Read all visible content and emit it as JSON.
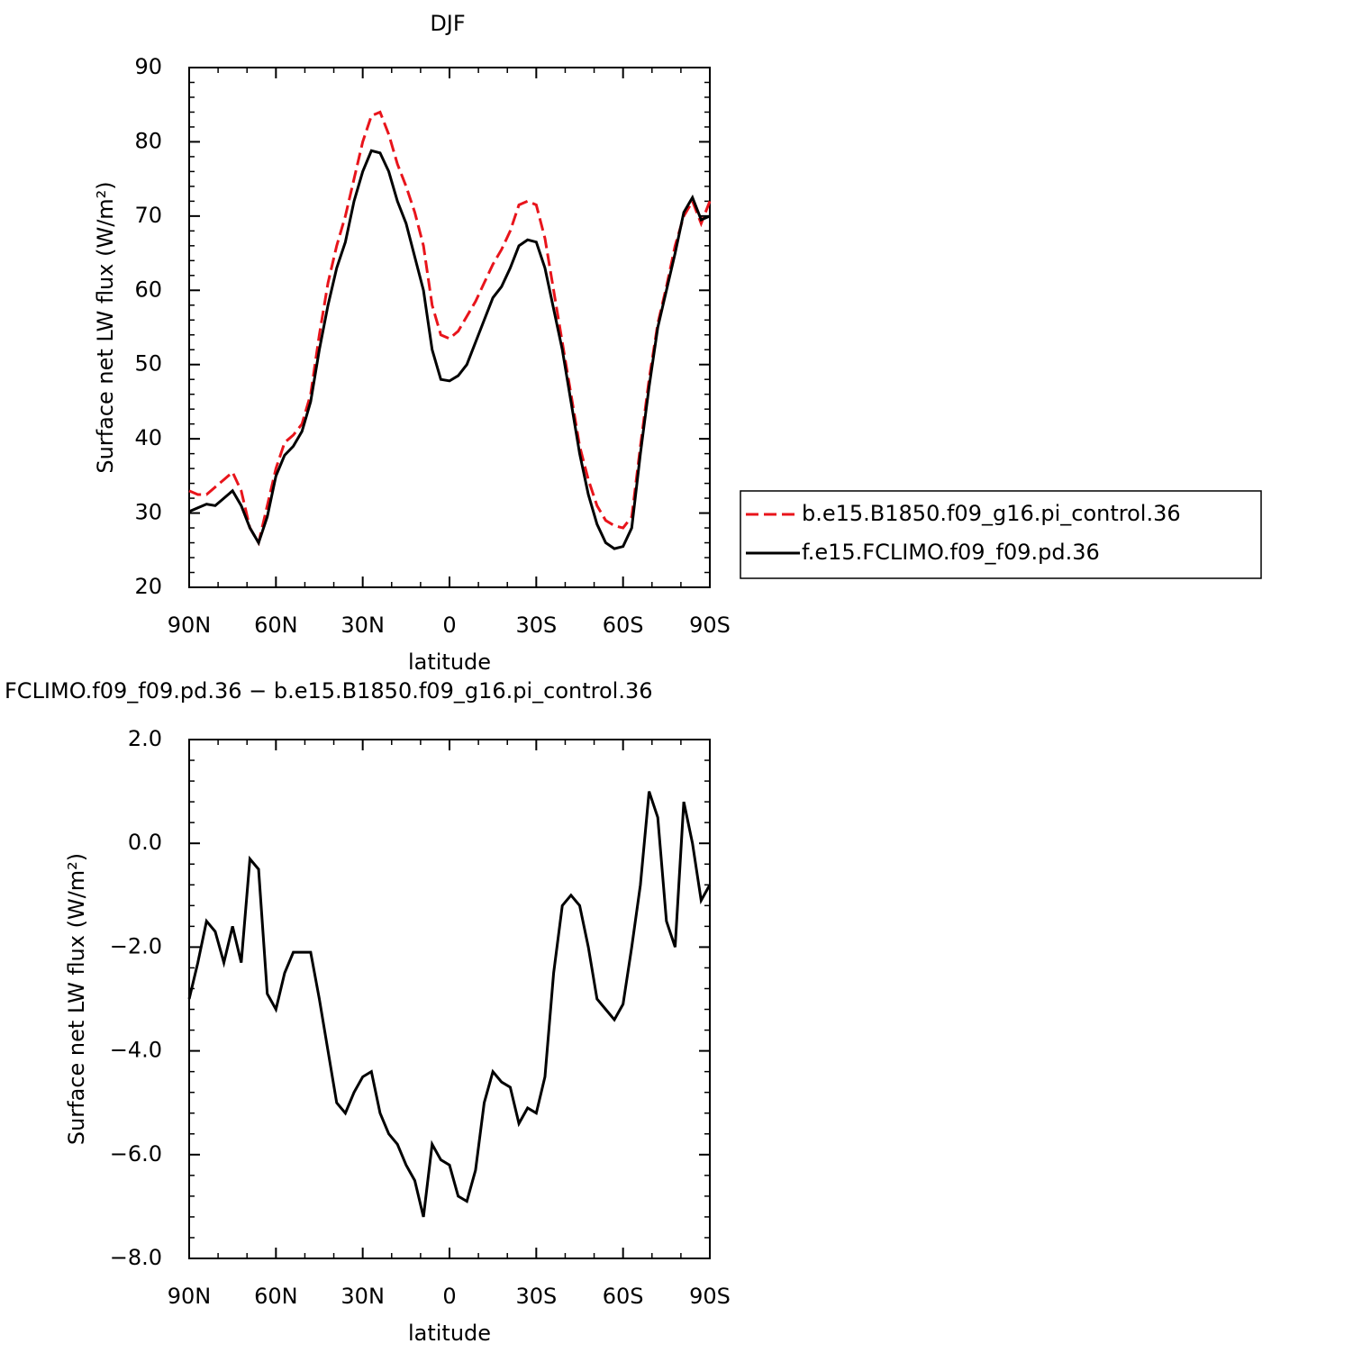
{
  "chart_data": [
    {
      "type": "line",
      "title": "DJF",
      "xlabel": "latitude",
      "ylabel": "Surface net LW flux (W/m²)",
      "x": [
        90,
        87,
        84,
        81,
        78,
        75,
        72,
        69,
        66,
        63,
        60,
        57,
        54,
        51,
        48,
        45,
        42,
        39,
        36,
        33,
        30,
        27,
        24,
        21,
        18,
        15,
        12,
        9,
        6,
        3,
        0,
        -3,
        -6,
        -9,
        -12,
        -15,
        -18,
        -21,
        -24,
        -27,
        -30,
        -33,
        -36,
        -39,
        -42,
        -45,
        -48,
        -51,
        -54,
        -57,
        -60,
        -63,
        -66,
        -69,
        -72,
        -75,
        -78,
        -81,
        -84,
        -87,
        -90
      ],
      "series": [
        {
          "name": "b.e15.B1850.f09_g16.pi_control.36",
          "color": "#e8141b",
          "dash": "dashed",
          "values": [
            33,
            32.5,
            32.5,
            33.5,
            34.5,
            35.5,
            33,
            28,
            26,
            31,
            36,
            39.5,
            40.5,
            42,
            46,
            54,
            61,
            66,
            70,
            75,
            80,
            83.5,
            84,
            81,
            77,
            74,
            70.5,
            66,
            58,
            54,
            53.5,
            54.5,
            56.5,
            58.5,
            61,
            63.5,
            65.5,
            68,
            71.5,
            72,
            71.5,
            67,
            60,
            53,
            46,
            39,
            34.5,
            31,
            29,
            28.3,
            28,
            29.5,
            39,
            48,
            55.5,
            60.5,
            66,
            70,
            72,
            69,
            72
          ]
        },
        {
          "name": "f.e15.FCLIMO.f09_f09.pd.36",
          "color": "#000000",
          "dash": "solid",
          "values": [
            30.2,
            30.7,
            31.2,
            31,
            32,
            33,
            31,
            28,
            26,
            29.5,
            35,
            37.8,
            39,
            41,
            45,
            52,
            58,
            63,
            66.5,
            72,
            76,
            78.8,
            78.5,
            76,
            72,
            69,
            64.5,
            60,
            52,
            48,
            47.8,
            48.5,
            50,
            53,
            56,
            59,
            60.5,
            63,
            66,
            66.8,
            66.5,
            63,
            57.5,
            52,
            45,
            38,
            32.5,
            28.5,
            26,
            25.2,
            25.5,
            28,
            38,
            47,
            55,
            60,
            65,
            70.5,
            72.5,
            69.5,
            70
          ]
        }
      ],
      "xlim": [
        90,
        -90
      ],
      "xticks": [
        {
          "value": 90,
          "label": "90N"
        },
        {
          "value": 60,
          "label": "60N"
        },
        {
          "value": 30,
          "label": "30N"
        },
        0,
        {
          "value": -30,
          "label": "30S"
        },
        {
          "value": -60,
          "label": "60S"
        },
        {
          "value": -90,
          "label": "90S"
        }
      ],
      "ylim": [
        20,
        90
      ],
      "yticks": [
        20,
        30,
        40,
        50,
        60,
        70,
        80,
        90
      ],
      "legend": "outside-right"
    },
    {
      "type": "line",
      "title": "FCLIMO.f09_f09.pd.36 − b.e15.B1850.f09_g16.pi_control.36",
      "xlabel": "latitude",
      "ylabel": "Surface net LW flux (W/m²)",
      "x": [
        90,
        87,
        84,
        81,
        78,
        75,
        72,
        69,
        66,
        63,
        60,
        57,
        54,
        51,
        48,
        45,
        42,
        39,
        36,
        33,
        30,
        27,
        24,
        21,
        18,
        15,
        12,
        9,
        6,
        3,
        0,
        -3,
        -6,
        -9,
        -12,
        -15,
        -18,
        -21,
        -24,
        -27,
        -30,
        -33,
        -36,
        -39,
        -42,
        -45,
        -48,
        -51,
        -54,
        -57,
        -60,
        -63,
        -66,
        -69,
        -72,
        -75,
        -78,
        -81,
        -84,
        -87,
        -90
      ],
      "series": [
        {
          "color": "#000000",
          "dash": "solid",
          "values": [
            -3,
            -2.3,
            -1.5,
            -1.7,
            -2.3,
            -1.6,
            -2.3,
            -0.3,
            -0.5,
            -2.9,
            -3.2,
            -2.5,
            -2.1,
            -2.1,
            -2.1,
            -3,
            -4,
            -5,
            -5.2,
            -4.8,
            -4.5,
            -4.4,
            -5.2,
            -5.6,
            -5.8,
            -6.2,
            -6.5,
            -7.2,
            -5.8,
            -6.1,
            -6.2,
            -6.8,
            -6.9,
            -6.3,
            -5,
            -4.4,
            -4.6,
            -4.7,
            -5.4,
            -5.1,
            -5.2,
            -4.5,
            -2.5,
            -1.2,
            -1,
            -1.2,
            -2,
            -3,
            -3.2,
            -3.4,
            -3.1,
            -2,
            -0.8,
            1,
            0.5,
            -1.5,
            -2,
            0.8,
            0,
            -1.1,
            -0.8
          ]
        }
      ],
      "xlim": [
        90,
        -90
      ],
      "xticks": [
        {
          "value": 90,
          "label": "90N"
        },
        {
          "value": 60,
          "label": "60N"
        },
        {
          "value": 30,
          "label": "30N"
        },
        0,
        {
          "value": -30,
          "label": "30S"
        },
        {
          "value": -60,
          "label": "60S"
        },
        {
          "value": -90,
          "label": "90S"
        }
      ],
      "ylim": [
        -8,
        2
      ],
      "yticks": [
        {
          "value": -8,
          "label": "−8.0"
        },
        {
          "value": -6,
          "label": "−6.0"
        },
        {
          "value": -4,
          "label": "−4.0"
        },
        {
          "value": -2,
          "label": "−2.0"
        },
        {
          "value": 0,
          "label": "0.0"
        },
        {
          "value": 2,
          "label": "2.0"
        }
      ]
    }
  ]
}
